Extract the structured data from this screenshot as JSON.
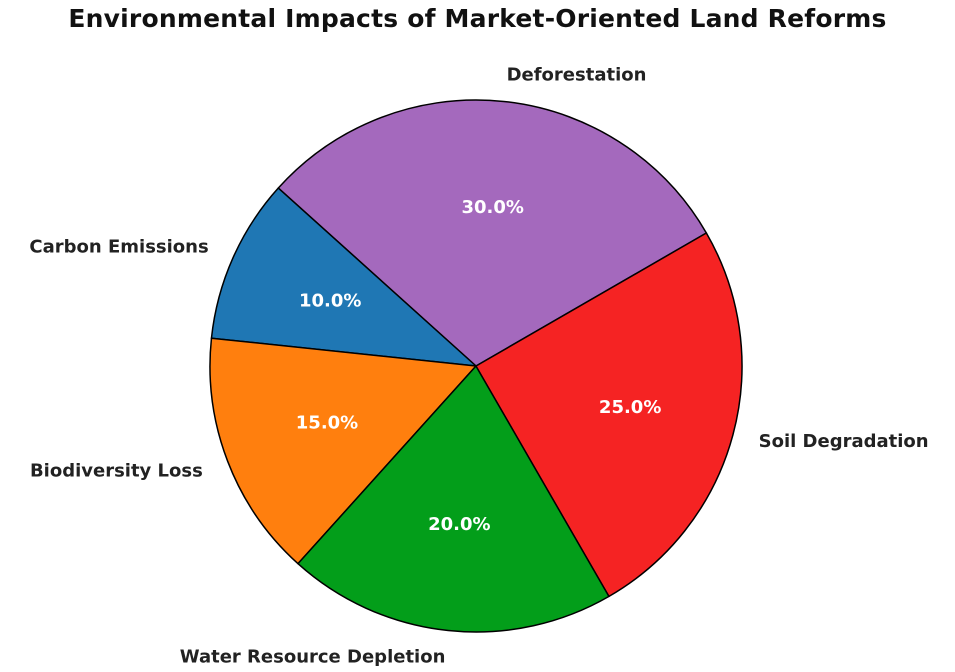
{
  "chart_data": {
    "type": "pie",
    "title": "Environmental Impacts of Market-Oriented Land Reforms",
    "slices": [
      {
        "label": "Deforestation",
        "value": 30.0,
        "pct_label": "30.0%",
        "color": "#a469bd"
      },
      {
        "label": "Carbon Emissions",
        "value": 10.0,
        "pct_label": "10.0%",
        "color": "#1f77b4"
      },
      {
        "label": "Biodiversity Loss",
        "value": 15.0,
        "pct_label": "15.0%",
        "color": "#ff7f0e"
      },
      {
        "label": "Water Resource Depletion",
        "value": 20.0,
        "pct_label": "20.0%",
        "color": "#039e1a"
      },
      {
        "label": "Soil Degradation",
        "value": 25.0,
        "pct_label": "25.0%",
        "color": "#f52323"
      }
    ],
    "start_angle_deg": 30,
    "direction": "counterclockwise",
    "edge_color": "#000000"
  }
}
